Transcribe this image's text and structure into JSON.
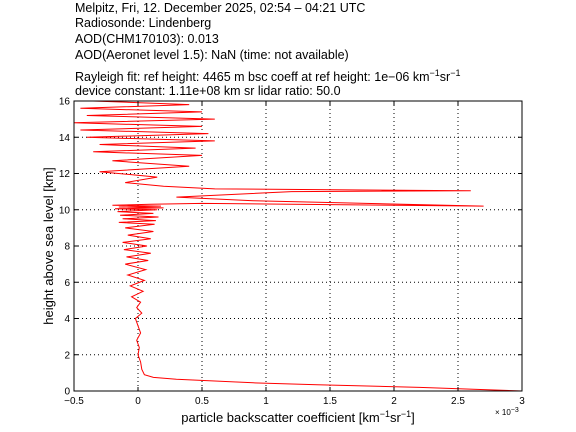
{
  "header": {
    "line1": "Melpitz, Fri, 12. December 2025, 02:54 – 04:21 UTC",
    "line2": "Radiosonde: Lindenberg",
    "line3": "AOD(CHM170103): 0.013",
    "line4": "AOD(Aeronet level 1.5): NaN   (time: not available)",
    "line5a": "Rayleigh fit:     ref height: 4465 m     bsc coeff at ref height: 1e−06 km",
    "line5_sup1": "−1",
    "line5b": "sr",
    "line5_sup2": "−1",
    "line6": "device constant: 1.11e+08 km sr     lidar ratio: 50.0"
  },
  "chart_data": {
    "type": "line",
    "xlabel": "particle backscatter coefficient [km",
    "xlabel_sup1": "−1",
    "xlabel_mid": "sr",
    "xlabel_sup2": "−1",
    "xlabel_end": "]",
    "ylabel": "height above sea level [km]",
    "x_multiplier": "× 10",
    "x_multiplier_exp": "−3",
    "xlim": [
      -0.5,
      3.0
    ],
    "ylim": [
      0,
      16
    ],
    "xticks": [
      -0.5,
      0,
      0.5,
      1,
      1.5,
      2,
      2.5,
      3
    ],
    "xtick_labels": [
      "−0.5",
      "0",
      "0.5",
      "1",
      "1.5",
      "2",
      "2.5",
      "3"
    ],
    "yticks": [
      0,
      2,
      4,
      6,
      8,
      10,
      12,
      14,
      16
    ],
    "ytick_labels": [
      "0",
      "2",
      "4",
      "6",
      "8",
      "10",
      "12",
      "14",
      "16"
    ],
    "grid": true,
    "grid_style": "dotted",
    "series": [
      {
        "color": "#ff0000",
        "x": [
          3.0,
          2.2,
          1.4,
          0.9,
          0.6,
          0.3,
          0.12,
          0.05,
          0.03,
          0.02,
          0.0,
          0.01,
          -0.01,
          0.02,
          0.0,
          -0.02,
          0.03,
          -0.01,
          0.02,
          -0.05,
          0.04,
          -0.06,
          0.05,
          -0.08,
          0.06,
          -0.1,
          0.08,
          -0.09,
          0.1,
          -0.11,
          0.07,
          -0.12,
          0.1,
          -0.08,
          0.12,
          -0.1,
          0.13,
          -0.15,
          0.14,
          -0.12,
          0.16,
          -0.14,
          0.12,
          -0.16,
          0.15,
          -0.18,
          0.2,
          -0.15,
          0.18,
          -0.2,
          0.1,
          0.5,
          2.7,
          0.9,
          0.3,
          1.2,
          2.6,
          0.6,
          0.2,
          -0.1,
          0.15,
          -0.3,
          0.4,
          -0.2,
          0.5,
          -0.35,
          0.45,
          -0.3,
          0.6,
          -0.4,
          0.55,
          -0.45,
          0.5,
          -0.5,
          0.6,
          -0.4,
          0.5,
          -0.45,
          0.4,
          -0.35,
          0.5
        ],
        "y": [
          0.0,
          0.2,
          0.35,
          0.45,
          0.55,
          0.65,
          0.75,
          0.9,
          1.2,
          1.6,
          2.0,
          2.4,
          2.8,
          3.2,
          3.6,
          4.0,
          4.3,
          4.6,
          4.9,
          5.2,
          5.5,
          5.8,
          6.1,
          6.4,
          6.7,
          7.0,
          7.2,
          7.4,
          7.6,
          7.8,
          8.0,
          8.2,
          8.4,
          8.6,
          8.8,
          9.0,
          9.2,
          9.3,
          9.4,
          9.5,
          9.6,
          9.7,
          9.8,
          9.9,
          10.0,
          10.05,
          10.1,
          10.15,
          10.2,
          10.25,
          10.3,
          10.35,
          10.2,
          10.5,
          10.7,
          11.0,
          11.05,
          11.15,
          11.3,
          11.5,
          11.8,
          12.1,
          12.4,
          12.7,
          13.0,
          13.2,
          13.4,
          13.6,
          13.8,
          14.0,
          14.2,
          14.4,
          14.6,
          14.8,
          15.0,
          15.2,
          15.4,
          15.6,
          15.8,
          16.0,
          16.0
        ]
      }
    ]
  }
}
